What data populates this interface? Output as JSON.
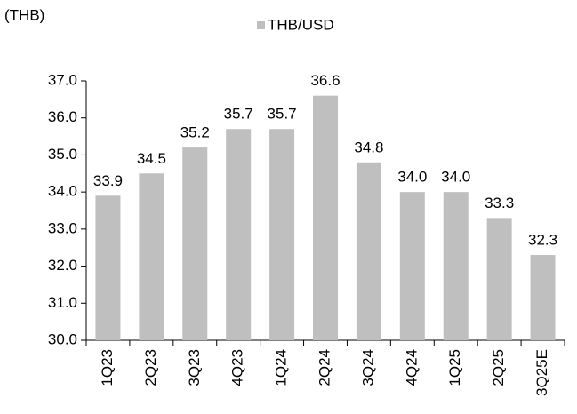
{
  "chart_data": {
    "type": "bar",
    "ylabel": "(THB)",
    "categories": [
      "1Q23",
      "2Q23",
      "3Q23",
      "4Q23",
      "1Q24",
      "2Q24",
      "3Q24",
      "4Q24",
      "1Q25",
      "2Q25",
      "3Q25E"
    ],
    "series": [
      {
        "name": "THB/USD",
        "color": "#bfbfbf",
        "values": [
          33.9,
          34.5,
          35.2,
          35.7,
          35.7,
          36.6,
          34.8,
          34.0,
          34.0,
          33.3,
          32.3
        ],
        "value_labels": [
          "33.9",
          "34.5",
          "35.2",
          "35.7",
          "35.7",
          "36.6",
          "34.8",
          "34.0",
          "34.0",
          "33.3",
          "32.3"
        ]
      }
    ],
    "ylim": [
      30,
      37
    ],
    "yticks": [
      {
        "value": 30,
        "label": "30.0"
      },
      {
        "value": 31,
        "label": "31.0"
      },
      {
        "value": 32,
        "label": "32.0"
      },
      {
        "value": 33,
        "label": "33.0"
      },
      {
        "value": 34,
        "label": "34.0"
      },
      {
        "value": 35,
        "label": "35.0"
      },
      {
        "value": 36,
        "label": "36.0"
      },
      {
        "value": 37,
        "label": "37.0"
      }
    ],
    "grid": false,
    "legend": "top"
  }
}
